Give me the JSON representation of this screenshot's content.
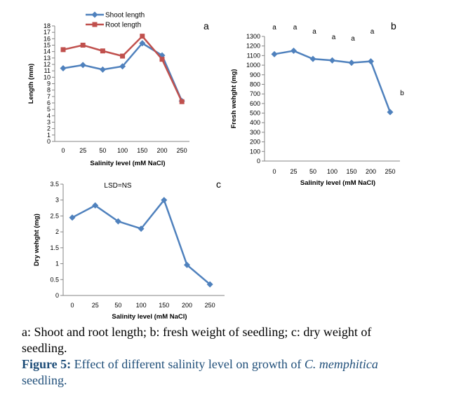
{
  "chart_data": [
    {
      "panel": "a",
      "type": "line",
      "x": [
        "0",
        "25",
        "50",
        "100",
        "150",
        "200",
        "250"
      ],
      "xlabel": "Salinity level (mM NaCl)",
      "ylabel": "Length (mm)",
      "ylim": [
        0,
        18
      ],
      "yticks": [
        0,
        1,
        2,
        3,
        4,
        5,
        6,
        7,
        8,
        9,
        10,
        11,
        12,
        13,
        14,
        15,
        16,
        17,
        18
      ],
      "legend_position": "top",
      "series": [
        {
          "name": "Shoot length",
          "color": "#4f81bd",
          "marker": "diamond",
          "values": [
            11.4,
            11.9,
            11.2,
            11.7,
            15.3,
            13.4,
            6.3
          ]
        },
        {
          "name": "Root length",
          "color": "#c0504d",
          "marker": "square",
          "values": [
            14.3,
            15.0,
            14.1,
            13.3,
            16.4,
            12.8,
            6.2
          ]
        }
      ]
    },
    {
      "panel": "b",
      "type": "line",
      "x": [
        "0",
        "25",
        "50",
        "100",
        "150",
        "200",
        "250"
      ],
      "xlabel": "Salinity level (mM NaCl)",
      "ylabel": "Fresh wehght (mg)",
      "ylim": [
        0,
        1300
      ],
      "yticks": [
        0,
        100,
        200,
        300,
        400,
        500,
        600,
        700,
        800,
        900,
        1000,
        1100,
        1200,
        1300
      ],
      "series": [
        {
          "name": "",
          "color": "#4f81bd",
          "marker": "diamond",
          "values": [
            1115,
            1150,
            1065,
            1050,
            1025,
            1040,
            510
          ]
        }
      ],
      "significance_letters": [
        "a",
        "a",
        "a",
        "a",
        "a",
        "a",
        "b"
      ]
    },
    {
      "panel": "c",
      "type": "line",
      "x": [
        "0",
        "25",
        "50",
        "100",
        "150",
        "200",
        "250"
      ],
      "xlabel": "Salinity level (mM NaCl)",
      "ylabel": "Dry wehght (mg)",
      "ylim": [
        0,
        3.5
      ],
      "yticks": [
        0,
        0.5,
        1,
        1.5,
        2,
        2.5,
        3,
        3.5
      ],
      "note": "LSD=NS",
      "series": [
        {
          "name": "",
          "color": "#4f81bd",
          "marker": "diamond",
          "values": [
            2.45,
            2.83,
            2.33,
            2.1,
            3.0,
            0.96,
            0.35
          ]
        }
      ]
    }
  ],
  "caption": {
    "line1": "a: Shoot and root length; b: fresh weight of seedling; c: dry weight of seedling.",
    "figure_label": "Figure 5:",
    "figure_text": "Effect of different salinity level on growth of",
    "species": "C. memphitica",
    "figure_tail": "seedling."
  }
}
